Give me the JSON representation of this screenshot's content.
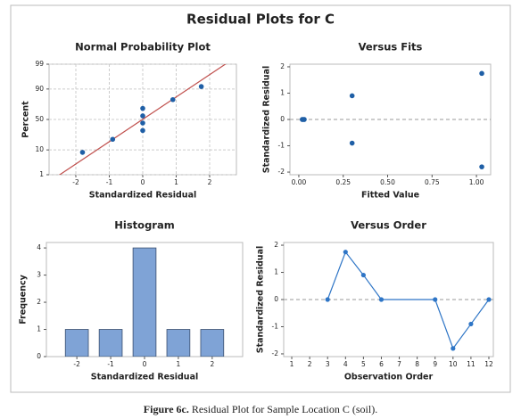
{
  "title": "Residual Plots for C",
  "caption": {
    "label": "Figure 6c.",
    "text": "Residual Plot for Sample Location C (soil)."
  },
  "chart_data": [
    {
      "type": "scatter",
      "title": "Normal Probability Plot",
      "x_label": "Standardized Residual",
      "y_label": "Percent",
      "x": [
        -1.8,
        -0.9,
        0,
        0,
        0,
        0,
        0.9,
        1.75
      ],
      "values": [
        8.3,
        20.2,
        32.1,
        44.0,
        56.0,
        67.9,
        79.8,
        91.7
      ],
      "xlim": [
        -2.8,
        2.8
      ],
      "xticks": [
        -2,
        -1,
        0,
        1,
        2
      ],
      "ylim": [
        1,
        99
      ],
      "yticks": [
        1,
        10,
        50,
        90,
        99
      ],
      "yscale": "probability",
      "fit_line": true,
      "fit_color": "#c0504d",
      "grid": true,
      "color": "#1f5fa6"
    },
    {
      "type": "scatter",
      "title": "Versus Fits",
      "x_label": "Fitted Value",
      "y_label": "Standardized Residual",
      "x": [
        0.03,
        1.03,
        0.3,
        0.02,
        0.03,
        1.03,
        0.3,
        0.02
      ],
      "values": [
        0,
        1.75,
        0.9,
        0,
        0,
        -1.8,
        -0.9,
        0
      ],
      "xlim": [
        -0.05,
        1.08
      ],
      "xticks": [
        {
          "value": 0,
          "label": "0.00"
        },
        {
          "value": 0.25,
          "label": "0.25"
        },
        {
          "value": 0.5,
          "label": "0.50"
        },
        {
          "value": 0.75,
          "label": "0.75"
        },
        {
          "value": 1,
          "label": "1.00"
        }
      ],
      "ylim": [
        -2.1,
        2.1
      ],
      "yticks": [
        -2,
        -1,
        0,
        1,
        2
      ],
      "reference_line": true,
      "color": "#1f5fa6"
    },
    {
      "type": "histogram",
      "title": "Histogram",
      "x_label": "Standardized Residual",
      "y_label": "Frequency",
      "bins": [
        -2.5,
        -1.5,
        -0.5,
        0.5,
        1.5,
        2.5
      ],
      "values": [
        1,
        1,
        4,
        1,
        1
      ],
      "xlim": [
        -2.9,
        2.9
      ],
      "xticks": [
        -2,
        -1,
        0,
        1,
        2
      ],
      "ylim": [
        0,
        4.2
      ],
      "yticks": [
        0,
        1,
        2,
        3,
        4
      ],
      "color": "#7fa3d6"
    },
    {
      "type": "line",
      "title": "Versus Order",
      "x_label": "Observation Order",
      "y_label": "Standardized Residual",
      "x": [
        3,
        4,
        5,
        6,
        9,
        10,
        11,
        12
      ],
      "values": [
        0,
        1.75,
        0.9,
        0,
        0,
        -1.8,
        -0.9,
        0
      ],
      "xlim": [
        0.55,
        12.25
      ],
      "xticks": [
        1,
        2,
        3,
        4,
        5,
        6,
        7,
        8,
        9,
        10,
        11,
        12
      ],
      "ylim": [
        -2.1,
        2.1
      ],
      "yticks": [
        -2,
        -1,
        0,
        1,
        2
      ],
      "reference_line": true,
      "color": "#2e75c6"
    }
  ]
}
